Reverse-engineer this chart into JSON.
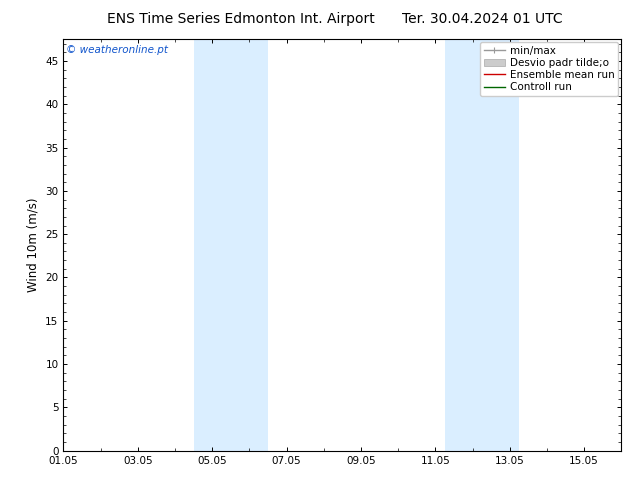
{
  "title_left": "ENS Time Series Edmonton Int. Airport",
  "title_right": "Ter. 30.04.2024 01 UTC",
  "ylabel": "Wind 10m (m/s)",
  "watermark": "© weatheronline.pt",
  "ylim": [
    0,
    47.5
  ],
  "yticks": [
    0,
    5,
    10,
    15,
    20,
    25,
    30,
    35,
    40,
    45
  ],
  "xlim": [
    0,
    15
  ],
  "xtick_labels": [
    "01.05",
    "03.05",
    "05.05",
    "07.05",
    "09.05",
    "11.05",
    "13.05",
    "15.05"
  ],
  "xtick_positions": [
    0,
    2,
    4,
    6,
    8,
    10,
    12,
    14
  ],
  "shade_bands": [
    {
      "start": 3.5,
      "end": 5.5
    },
    {
      "start": 10.25,
      "end": 12.25
    }
  ],
  "shade_color": "#daeeff",
  "background_color": "#ffffff",
  "legend_entries": [
    {
      "label": "min/max",
      "color": "#999999",
      "linewidth": 1.0
    },
    {
      "label": "Desvio padr tilde;o",
      "color": "#cccccc",
      "linewidth": 5
    },
    {
      "label": "Ensemble mean run",
      "color": "#cc0000",
      "linewidth": 1.0
    },
    {
      "label": "Controll run",
      "color": "#006600",
      "linewidth": 1.0
    }
  ],
  "title_fontsize": 10,
  "tick_fontsize": 7.5,
  "ylabel_fontsize": 8.5,
  "watermark_color": "#1155cc",
  "watermark_fontsize": 7.5,
  "legend_fontsize": 7.5
}
